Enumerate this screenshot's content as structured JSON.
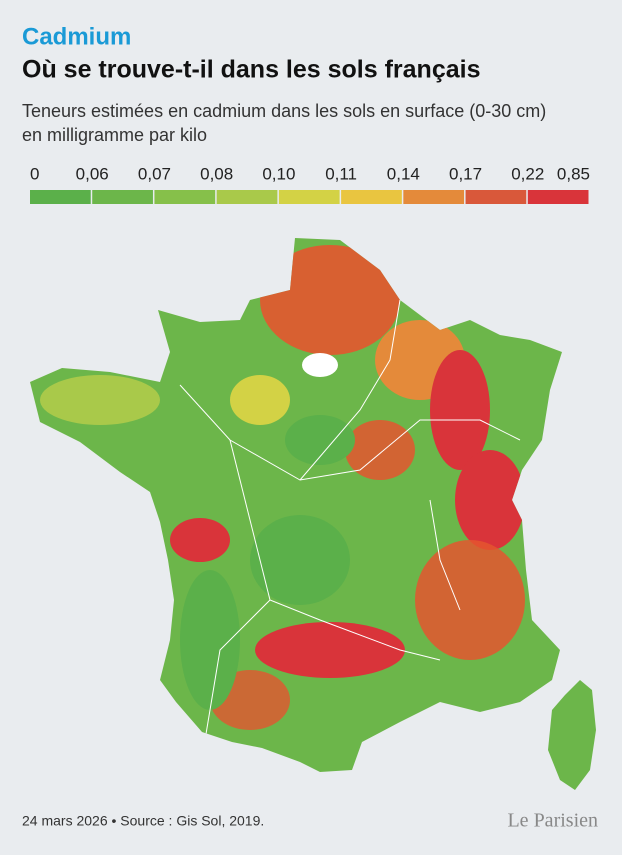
{
  "header": {
    "kicker": "Cadmium",
    "title": "Où se trouve-t-il dans les sols français",
    "subtitle_lines": [
      "Teneurs estimées en cadmium dans les sols en surface (0-30 cm)",
      "en milligramme par kilo"
    ]
  },
  "legend": {
    "labels": [
      "0",
      "0,06",
      "0,07",
      "0,08",
      "0,10",
      "0,11",
      "0,14",
      "0,17",
      "0,22",
      "0,85"
    ],
    "colors": [
      "#5bb04a",
      "#6cb64a",
      "#86c04a",
      "#a9c94a",
      "#d3d245",
      "#e9c540",
      "#e48a3a",
      "#d9583a",
      "#d9343a"
    ]
  },
  "footer": {
    "source": "24 mars 2026 • Source : Gis Sol, 2019.",
    "logo": "Le Parisien"
  }
}
